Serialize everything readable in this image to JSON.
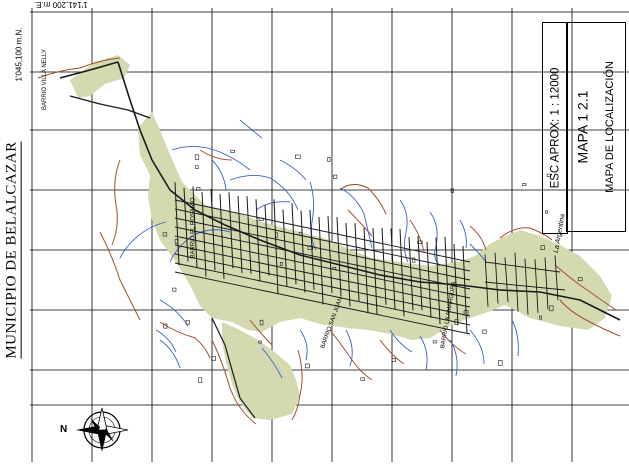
{
  "map": {
    "municipality_label": "MUNICIPIO  DE  BELALCAZAR",
    "coord_top": "1'141,200 m.E.",
    "coord_left": "1'045,100 m.N.",
    "map_number": "MAPA 1 2.1",
    "map_subtitle": "MAPA DE LOCALIZACIÓN",
    "scale": "ESC APROX: 1 : 12000",
    "north_label": "N",
    "street_labels": [
      {
        "text": "BARRIO VILLA NELLY"
      },
      {
        "text": "BARRIO EL ROSARIO"
      },
      {
        "text": "BARRIO SAN JUAN"
      },
      {
        "text": "BARRIO LA AMARGURA"
      },
      {
        "text": "La Argentina"
      }
    ],
    "colors": {
      "urban_area": "#d4d9b0",
      "rivers": "#3a5fd0",
      "contours": "#a0522d",
      "streets": "#1a1a1a",
      "grid": "#000000"
    }
  }
}
